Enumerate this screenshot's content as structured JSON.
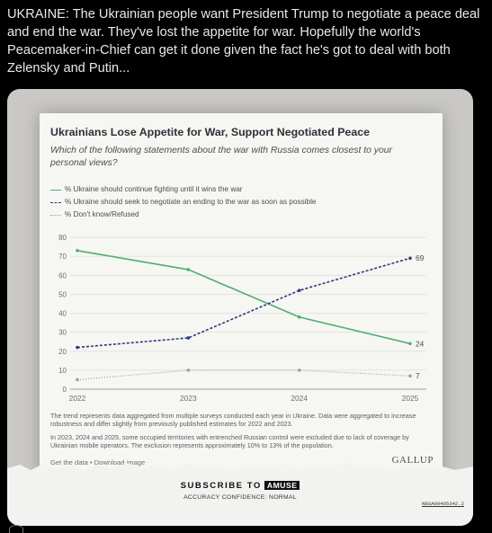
{
  "tweet": {
    "text": "UKRAINE: The Ukrainian people want President Trump to negotiate a peace deal and end the war. They've lost the appetite for war. Hopefully the world's Peacemaker-in-Chief can get it done given the fact he's got to deal with both Zelensky and Putin..."
  },
  "chart_card": {
    "title": "Ukrainians Lose Appetite for War, Support Negotiated Peace",
    "question": "Which of the following statements about the war with Russia comes closest to your personal views?",
    "footnote_1": "The trend represents data aggregated from multiple surveys conducted each year in Ukraine. Data were aggregated to increase robustness and differ slightly from previously published estimates for 2022 and 2023.",
    "footnote_2": "In 2023, 2024 and 2025, some occupied territories with entrenched Russian control were excluded due to lack of coverage by Ukrainian mobile operators. The exclusion represents approximately 10% to 13% of the population.",
    "links": "Get the data • Download image",
    "brand": "GALLUP"
  },
  "chart_data": {
    "type": "line",
    "title": "Ukrainians Lose Appetite for War, Support Negotiated Peace",
    "x": [
      "2022",
      "2023",
      "2024",
      "2025"
    ],
    "ylim": [
      0,
      80
    ],
    "yticks": [
      "0",
      "10",
      "20",
      "30",
      "40",
      "50",
      "60",
      "70",
      "80"
    ],
    "grid": true,
    "legend_position": "top-left",
    "series": [
      {
        "name": "% Ukraine should continue fighting until it wins the war",
        "values": [
          73,
          63,
          38,
          24
        ],
        "end_label": "24",
        "color": "#4caf72",
        "style": "solid"
      },
      {
        "name": "% Ukraine should seek to negotiate an ending to the war as soon as possible",
        "values": [
          22,
          27,
          52,
          69
        ],
        "end_label": "69",
        "color": "#2e3a7c",
        "style": "dashed"
      },
      {
        "name": "% Don't know/Refused",
        "values": [
          5,
          10,
          10,
          7
        ],
        "end_label": "7",
        "color": "#9aa0a3",
        "style": "dotted"
      }
    ]
  },
  "watermark": {
    "subscribe": "SUBSCRIBE TO",
    "badge": "AMUSE",
    "accuracy": "ACCURACY CONFIDENCE: NORMAL",
    "id": "NBSA00405342.2"
  }
}
